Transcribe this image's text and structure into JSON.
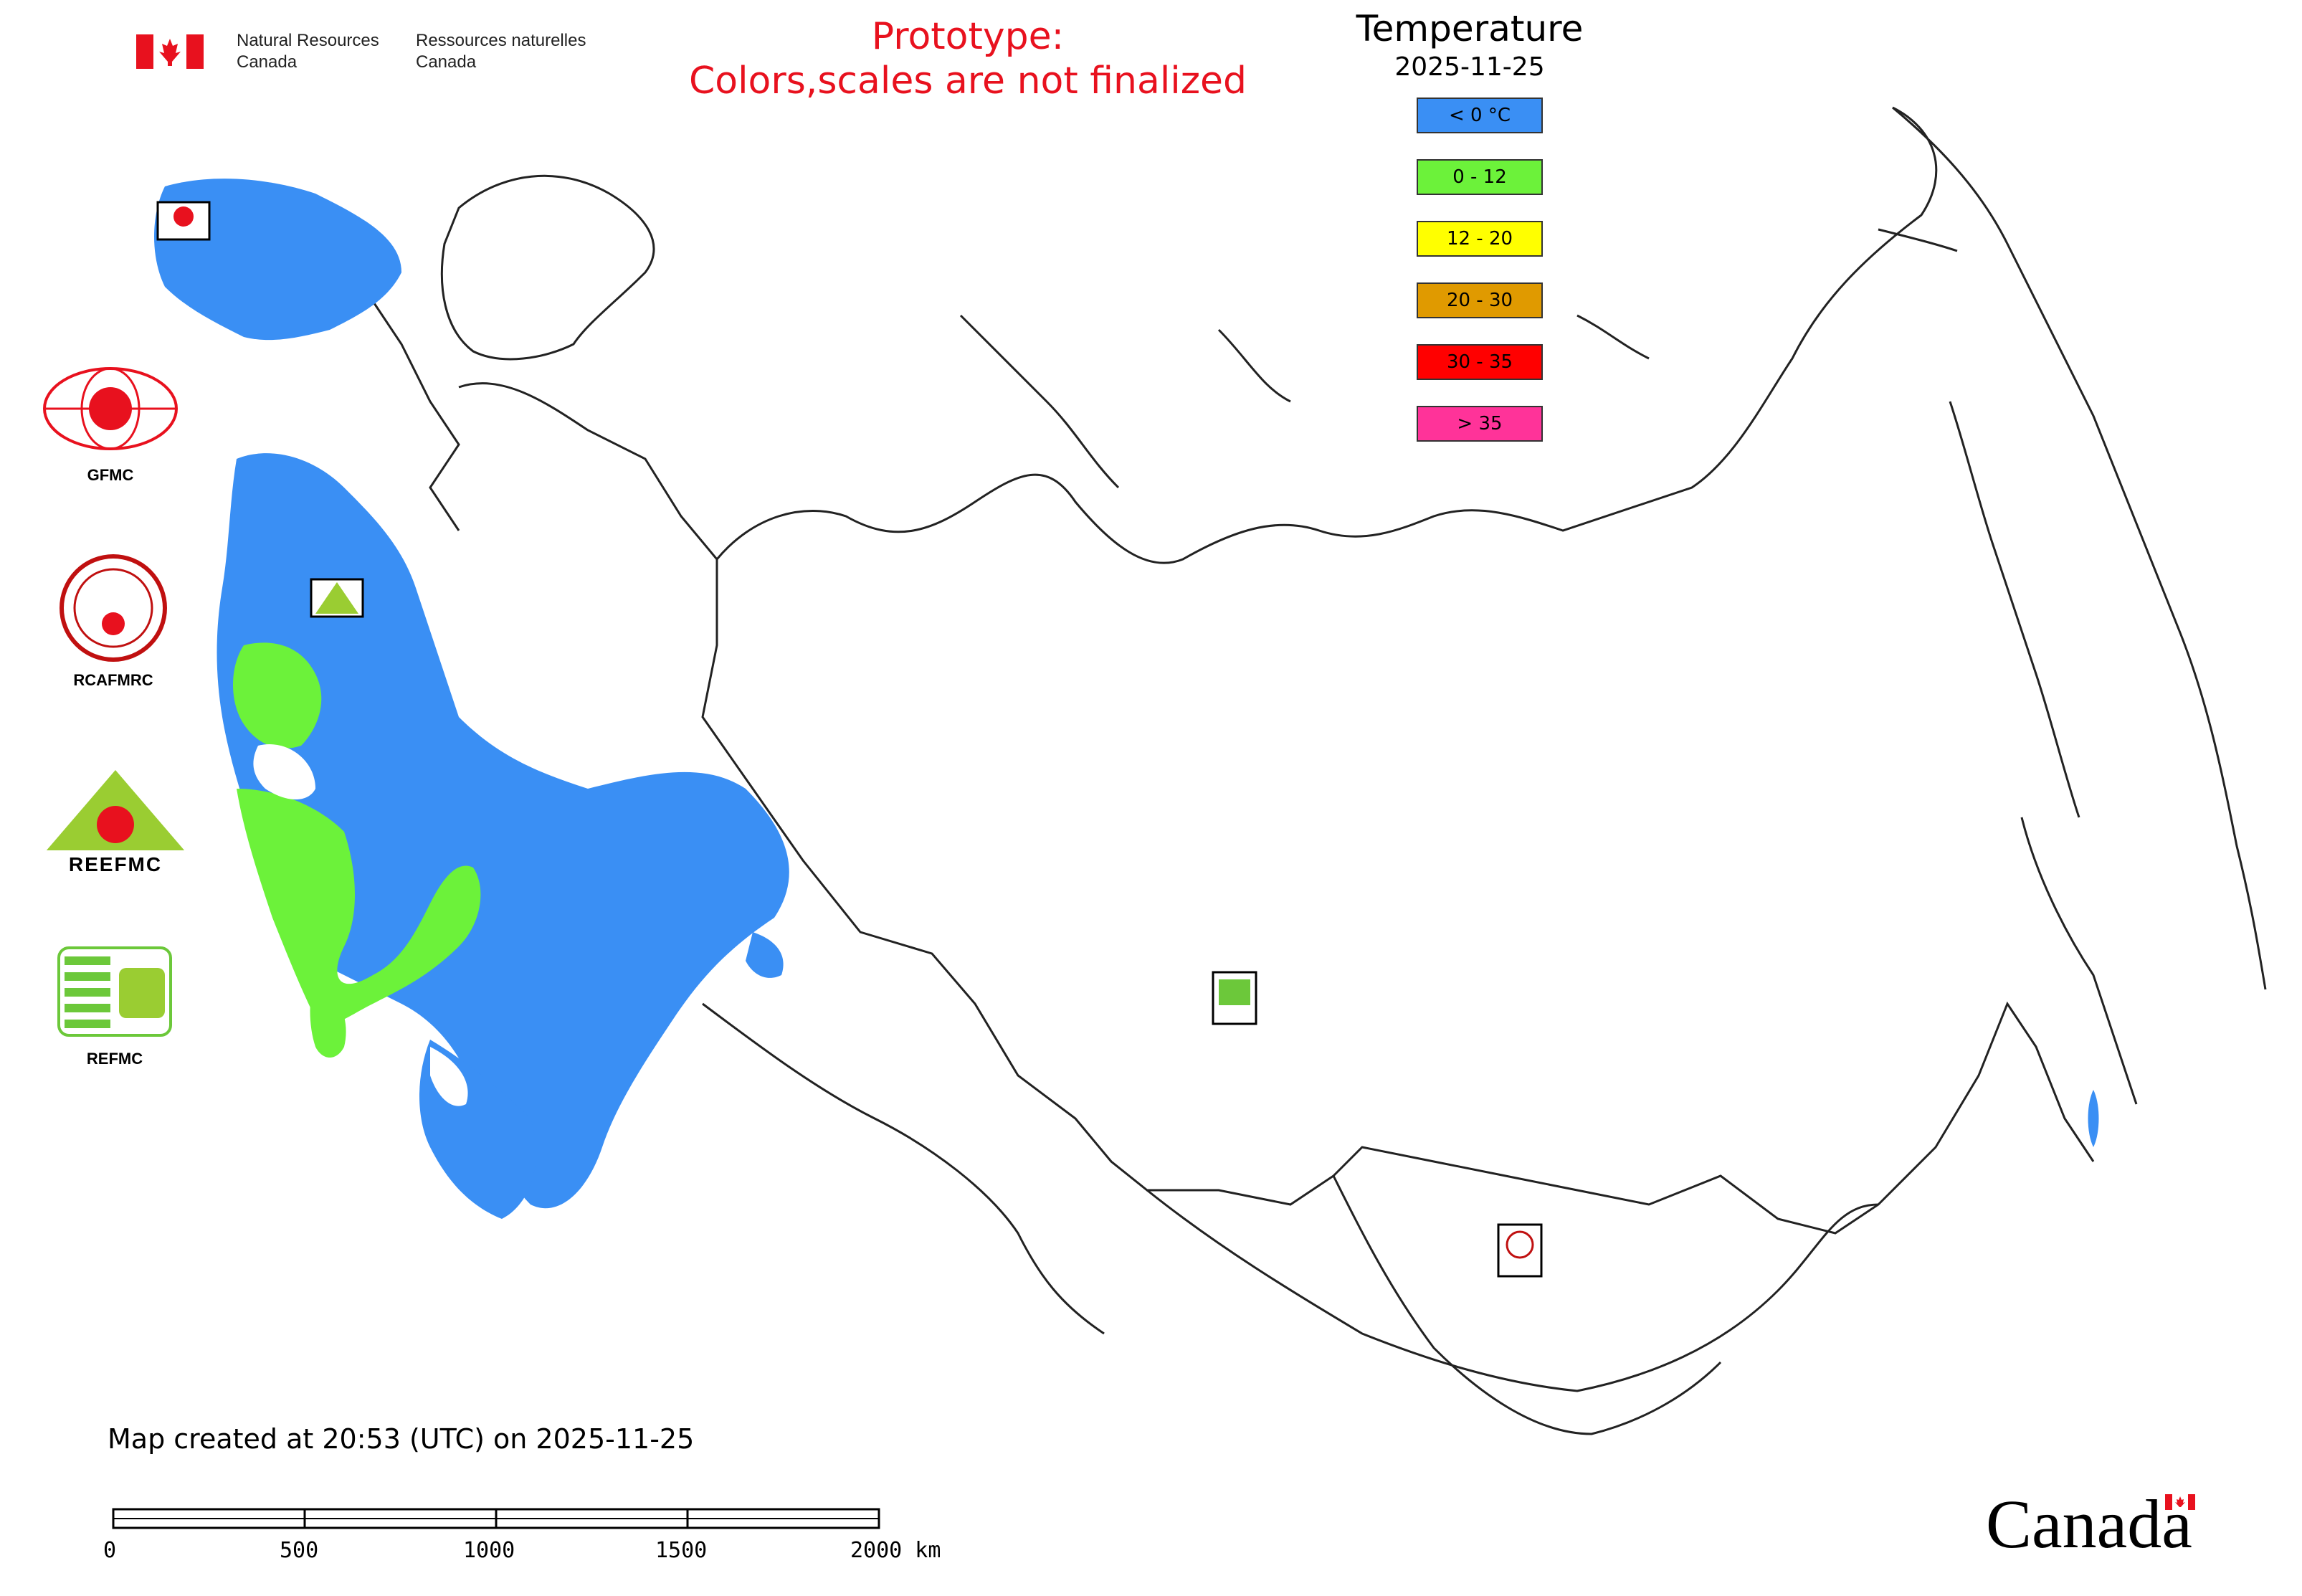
{
  "header": {
    "agency_en": "Natural Resources\nCanada",
    "agency_fr": "Ressources naturelles\nCanada",
    "prototype_title": "Prototype:",
    "prototype_note": "Colors,scales are not finalized"
  },
  "legend": {
    "title": "Temperature",
    "date": "2025-11-25",
    "classes": [
      {
        "label": "< 0 °C",
        "color": "#3a8ff4"
      },
      {
        "label": "0 - 12",
        "color": "#6cf23a"
      },
      {
        "label": "12 - 20",
        "color": "#ffff00"
      },
      {
        "label": "20 - 30",
        "color": "#e09a00"
      },
      {
        "label": "30 - 35",
        "color": "#ff0000"
      },
      {
        "label": "> 35",
        "color": "#ff3399"
      }
    ]
  },
  "side_logos": [
    {
      "name": "GFMC",
      "label": "GFMC"
    },
    {
      "name": "RCAFMRC",
      "label": "RCAFMRC"
    },
    {
      "name": "REEFMC",
      "label": "REEFMC"
    },
    {
      "name": "REFMC",
      "label": "REFMC"
    }
  ],
  "map_markers": [
    {
      "label": "GFMC"
    },
    {
      "label": "REEFMC"
    },
    {
      "label": "REFMC"
    },
    {
      "label": "RCAFMRC"
    }
  ],
  "footer": {
    "created": "Map created at 20:53 (UTC) on 2025-11-25",
    "scale_ticks": [
      "0",
      "500",
      "1000",
      "1500",
      "2000 km"
    ],
    "wordmark": "Canada"
  }
}
